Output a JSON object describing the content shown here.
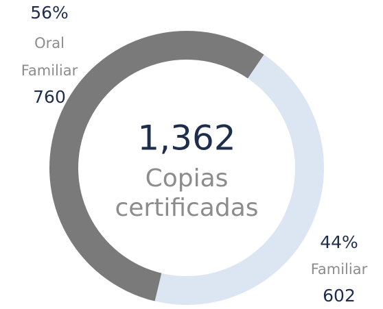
{
  "chart_data": {
    "type": "donut",
    "center_value": {
      "value": 1362,
      "label": "1,362"
    },
    "center_label": "Copias certificadas",
    "categories": [
      "Oral Familiar",
      "Familiar"
    ],
    "values": [
      760,
      602
    ],
    "percents": [
      56,
      44
    ],
    "percent_labels": [
      "56%",
      "44%"
    ],
    "colors": [
      "#7a7a7a",
      "#dce6f2"
    ]
  }
}
